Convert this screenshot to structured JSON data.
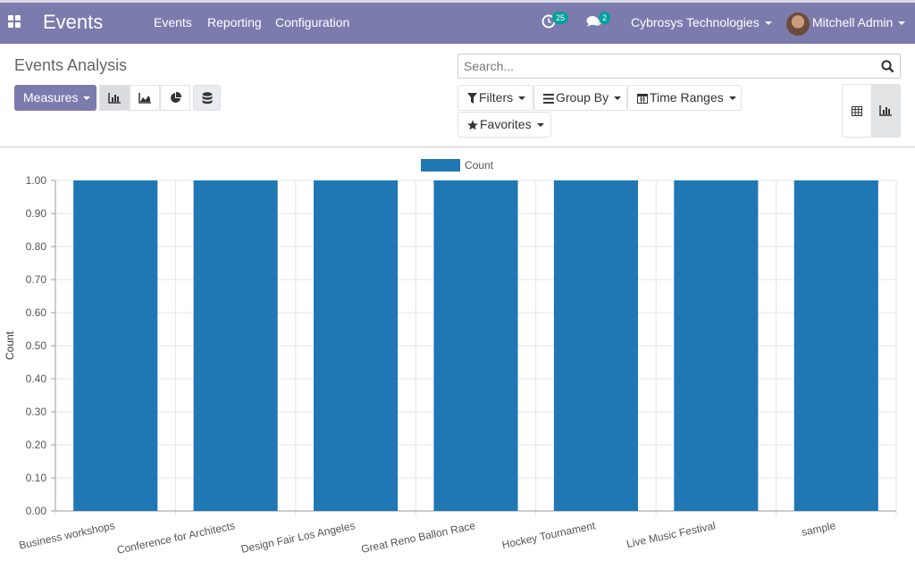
{
  "navbar": {
    "brand": "Events",
    "menu": [
      "Events",
      "Reporting",
      "Configuration"
    ],
    "activities_count": "25",
    "messages_count": "2",
    "company": "Cybrosys Technologies",
    "user": "Mitchell Admin"
  },
  "control_panel": {
    "title": "Events Analysis",
    "measures_label": "Measures",
    "search_placeholder": "Search...",
    "filters_label": "Filters",
    "group_by_label": "Group By",
    "time_ranges_label": "Time Ranges",
    "favorites_label": "Favorites"
  },
  "colors": {
    "brand": "#7c7bad",
    "bar": "#1f77b4",
    "badge": "#00a09d"
  },
  "chart_data": {
    "type": "bar",
    "categories": [
      "Business workshops",
      "Conference for Architects",
      "Design Fair Los Angeles",
      "Great Reno Ballon Race",
      "Hockey Tournament",
      "Live Music Festival",
      "sample"
    ],
    "series": [
      {
        "name": "Count",
        "values": [
          1,
          1,
          1,
          1,
          1,
          1,
          1
        ]
      }
    ],
    "ylabel": "Count",
    "ylim": [
      0,
      1
    ],
    "yticks": [
      "0.00",
      "0.10",
      "0.20",
      "0.30",
      "0.40",
      "0.50",
      "0.60",
      "0.70",
      "0.80",
      "0.90",
      "1.00"
    ],
    "grid": true,
    "legend": "top-center"
  }
}
